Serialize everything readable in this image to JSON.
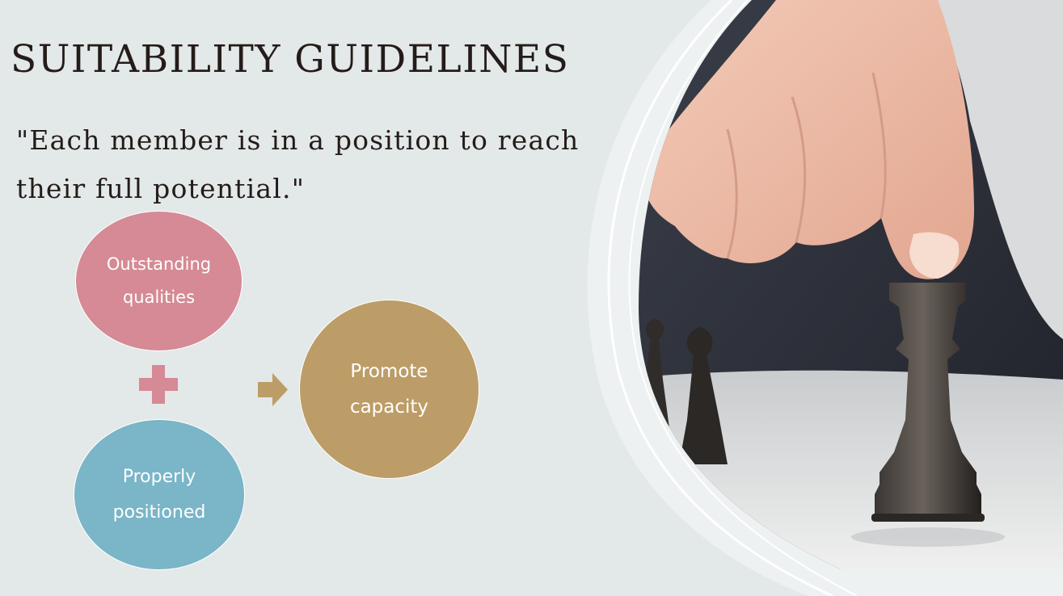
{
  "slide": {
    "title": "SUITABILITY GUIDELINES",
    "quote": "\"Each member is in a position to reach their full potential.\""
  },
  "diagram": {
    "node_qualities": "Outstanding qualities",
    "node_positioned": "Properly positioned",
    "node_result": "Promote capacity"
  },
  "colors": {
    "background": "#e3e8e8",
    "pink": "#d58a95",
    "blue": "#7ab5c8",
    "gold": "#bc9d67"
  },
  "icons": [
    "plus-icon",
    "arrow-right-icon",
    "chess-photo"
  ]
}
